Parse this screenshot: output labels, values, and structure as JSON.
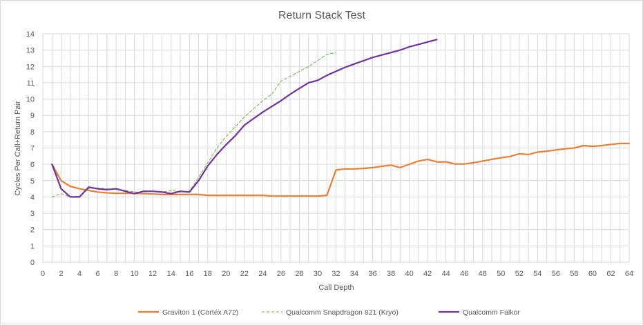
{
  "chart_data": {
    "type": "line",
    "title": "Return Stack Test",
    "xlabel": "Call Depth",
    "ylabel": "Cycles Per Call+Return Pair",
    "xlim": [
      0,
      64
    ],
    "ylim": [
      0,
      14
    ],
    "x_ticks": [
      0,
      2,
      4,
      6,
      8,
      10,
      12,
      14,
      16,
      18,
      20,
      22,
      24,
      26,
      28,
      30,
      32,
      34,
      36,
      38,
      40,
      42,
      44,
      46,
      48,
      50,
      52,
      54,
      56,
      58,
      60,
      62,
      64
    ],
    "y_ticks": [
      0,
      1,
      2,
      3,
      4,
      5,
      6,
      7,
      8,
      9,
      10,
      11,
      12,
      13,
      14
    ],
    "grid": true,
    "legend_position": "bottom",
    "series": [
      {
        "name": "Graviton 1 (Cortex A72)",
        "color": "#ed7d31",
        "dash": "solid",
        "x": [
          1,
          2,
          3,
          4,
          5,
          6,
          7,
          8,
          9,
          10,
          11,
          12,
          13,
          14,
          15,
          16,
          17,
          18,
          19,
          20,
          21,
          22,
          23,
          24,
          25,
          26,
          27,
          28,
          29,
          30,
          31,
          32,
          33,
          34,
          35,
          36,
          37,
          38,
          39,
          40,
          41,
          42,
          43,
          44,
          45,
          46,
          47,
          48,
          49,
          50,
          51,
          52,
          53,
          54,
          55,
          56,
          57,
          58,
          59,
          60,
          61,
          62,
          63,
          64
        ],
        "y": [
          6.0,
          5.0,
          4.65,
          4.5,
          4.4,
          4.3,
          4.25,
          4.22,
          4.22,
          4.22,
          4.2,
          4.18,
          4.15,
          4.15,
          4.15,
          4.15,
          4.15,
          4.1,
          4.1,
          4.1,
          4.1,
          4.1,
          4.1,
          4.1,
          4.05,
          4.05,
          4.05,
          4.05,
          4.05,
          4.05,
          4.1,
          5.65,
          5.72,
          5.72,
          5.75,
          5.8,
          5.88,
          5.95,
          5.8,
          6.0,
          6.2,
          6.3,
          6.15,
          6.15,
          6.02,
          6.02,
          6.1,
          6.2,
          6.3,
          6.4,
          6.48,
          6.65,
          6.6,
          6.75,
          6.8,
          6.88,
          6.95,
          7.0,
          7.15,
          7.1,
          7.15,
          7.22,
          7.28,
          7.28
        ]
      },
      {
        "name": "Qualcomm Snapdragon 821 (Kryo)",
        "color": "#70ad47",
        "dash": "dashed",
        "x": [
          1,
          2,
          3,
          4,
          5,
          6,
          7,
          8,
          9,
          10,
          11,
          12,
          13,
          14,
          15,
          16,
          17,
          18,
          19,
          20,
          21,
          22,
          23,
          24,
          25,
          26,
          27,
          28,
          29,
          30,
          31,
          32
        ],
        "y": [
          4.0,
          4.2,
          4.0,
          4.05,
          4.5,
          4.55,
          4.5,
          4.45,
          4.4,
          4.3,
          4.3,
          4.35,
          4.3,
          4.4,
          4.3,
          4.35,
          5.2,
          6.1,
          7.0,
          7.7,
          8.3,
          8.9,
          9.4,
          9.9,
          10.3,
          11.1,
          11.4,
          11.7,
          12.0,
          12.35,
          12.75,
          12.85
        ]
      },
      {
        "name": "Qualcomm Falkor",
        "color": "#7030a0",
        "dash": "solid",
        "x": [
          1,
          2,
          3,
          4,
          5,
          6,
          7,
          8,
          9,
          10,
          11,
          12,
          13,
          14,
          15,
          16,
          17,
          18,
          19,
          20,
          21,
          22,
          23,
          24,
          25,
          26,
          27,
          28,
          29,
          30,
          31,
          32,
          33,
          34,
          35,
          36,
          37,
          38,
          39,
          40,
          41,
          42,
          43
        ],
        "y": [
          6.0,
          4.5,
          4.0,
          4.0,
          4.6,
          4.5,
          4.45,
          4.5,
          4.35,
          4.2,
          4.35,
          4.35,
          4.3,
          4.2,
          4.35,
          4.3,
          5.0,
          5.9,
          6.6,
          7.2,
          7.75,
          8.4,
          8.8,
          9.2,
          9.55,
          9.9,
          10.3,
          10.65,
          11.0,
          11.15,
          11.45,
          11.7,
          11.95,
          12.15,
          12.35,
          12.55,
          12.7,
          12.85,
          13.0,
          13.2,
          13.35,
          13.5,
          13.65
        ]
      }
    ]
  }
}
